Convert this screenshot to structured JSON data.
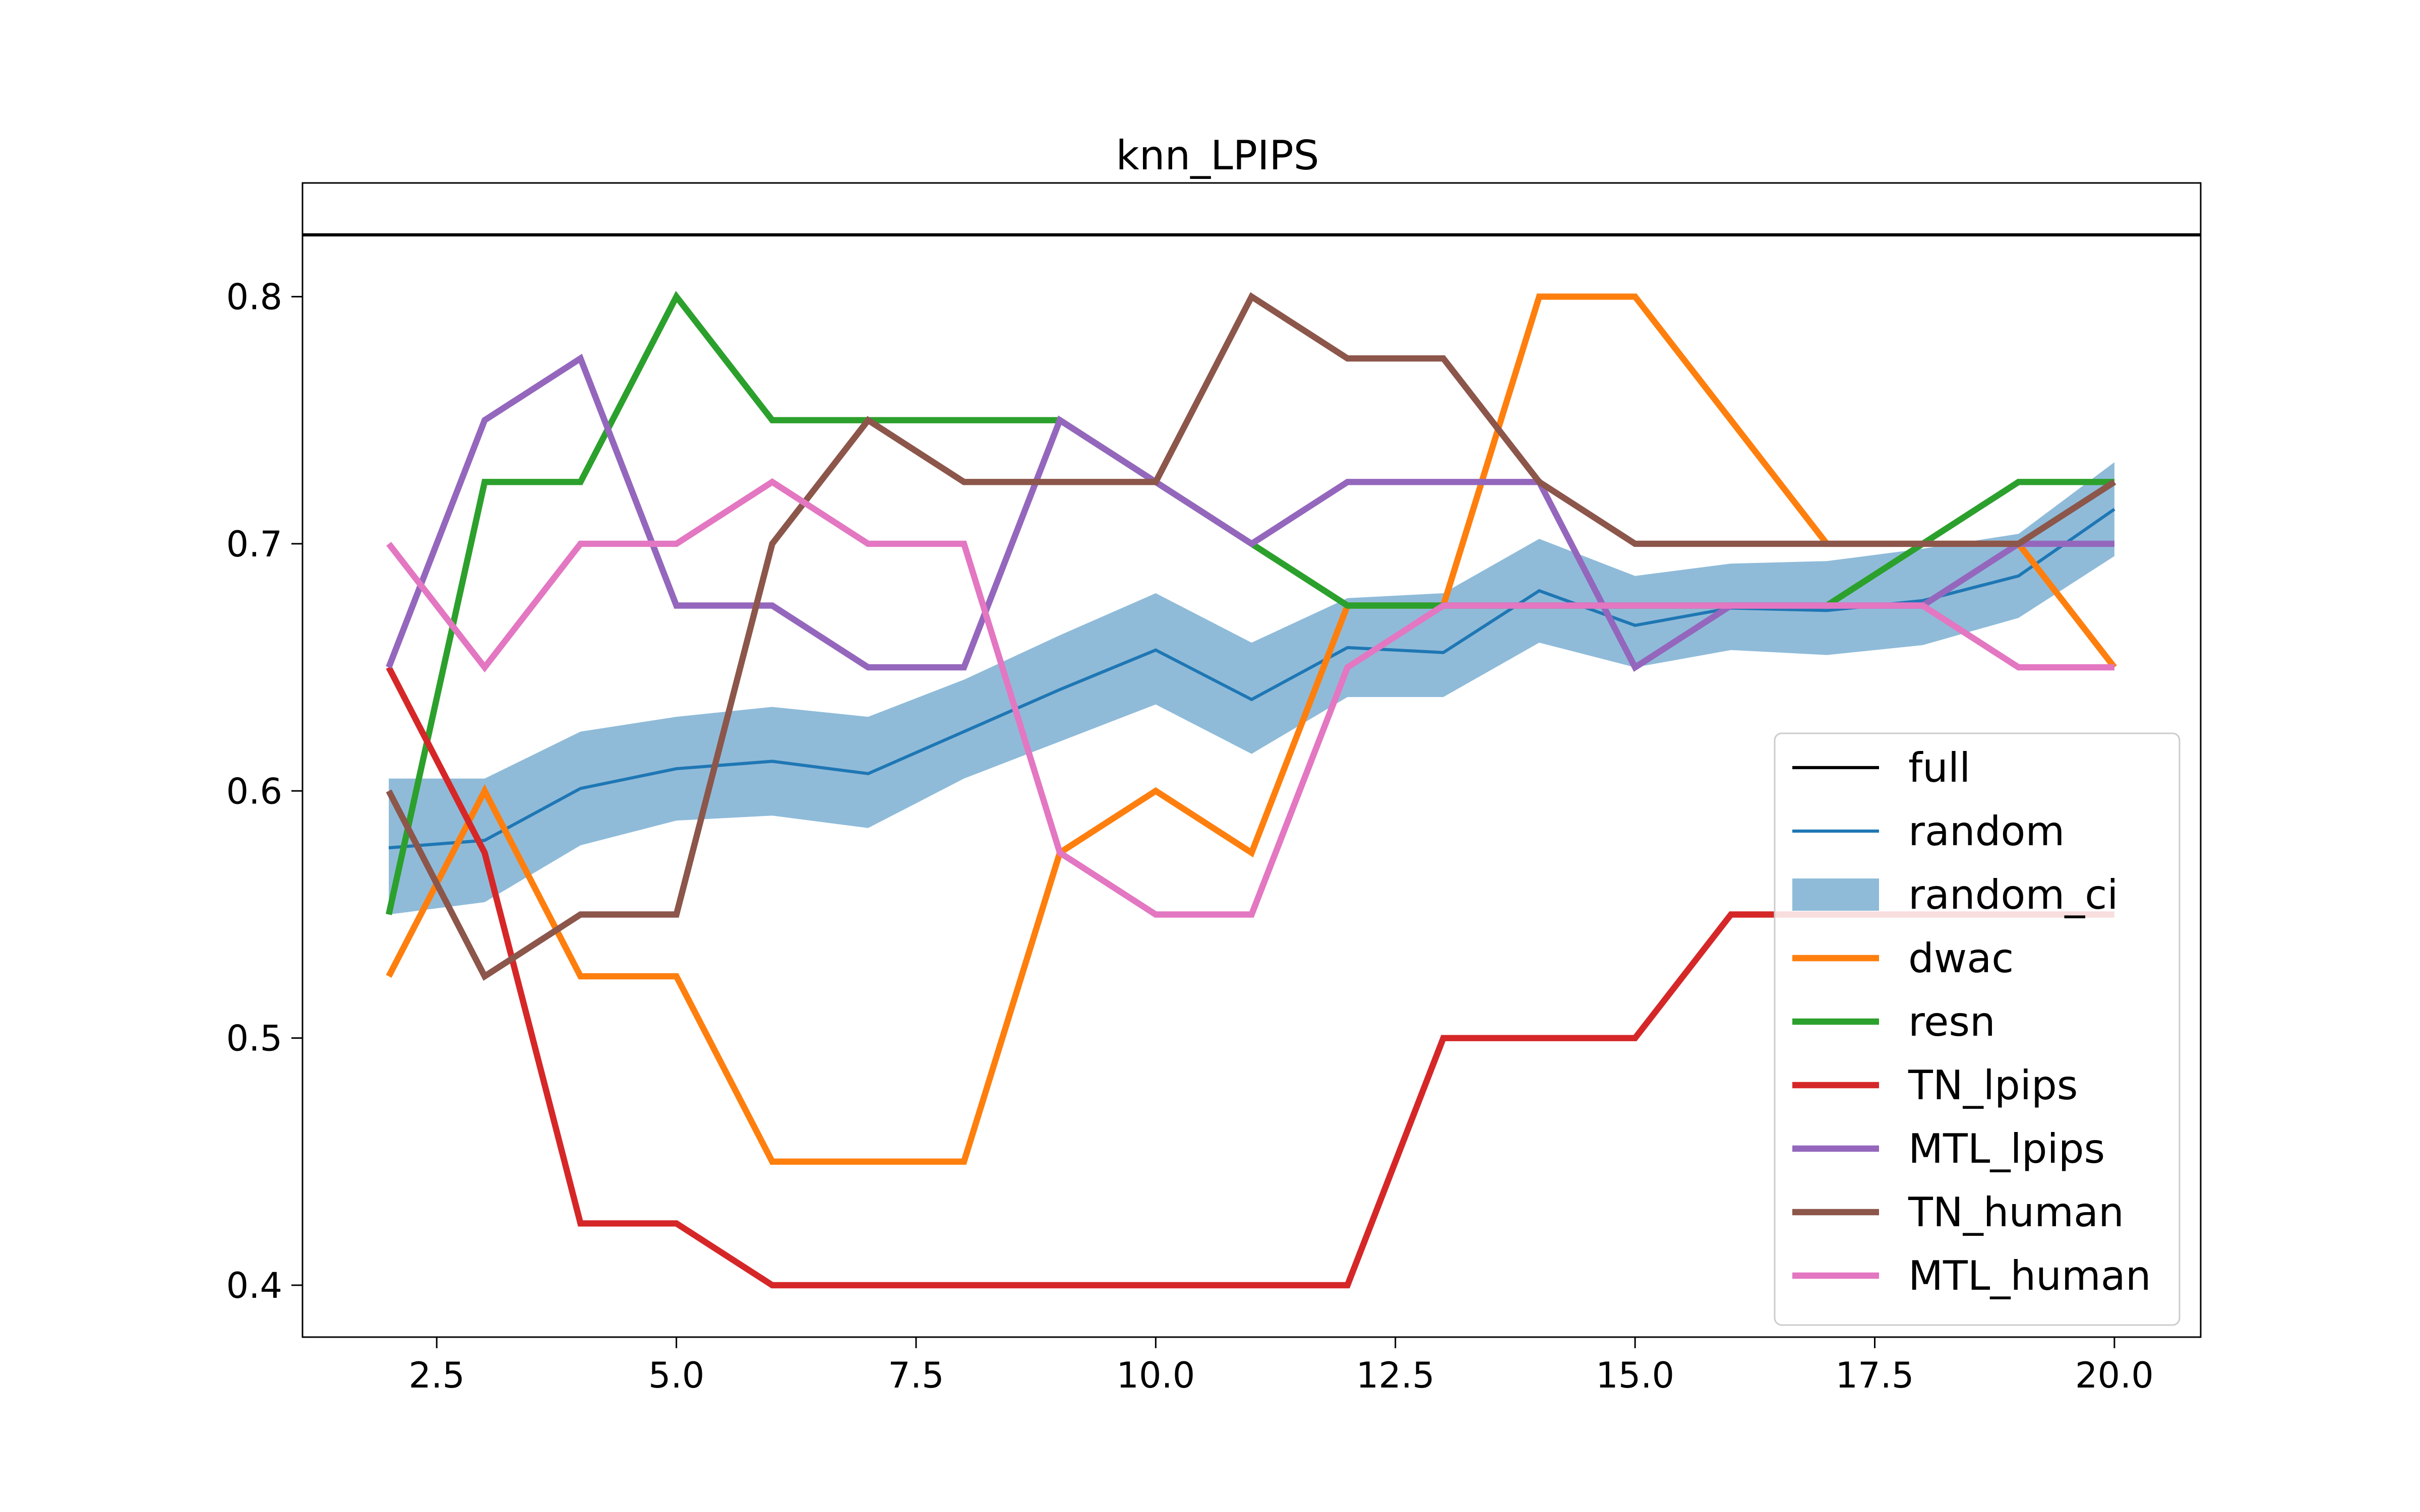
{
  "chart_data": {
    "type": "line",
    "title": "knn_LPIPS",
    "xlabel": "",
    "ylabel": "",
    "xlim": [
      1.1,
      20.9
    ],
    "ylim": [
      0.379,
      0.846
    ],
    "xticks": [
      2.5,
      5.0,
      7.5,
      10.0,
      12.5,
      15.0,
      17.5,
      20.0
    ],
    "xtick_labels": [
      "2.5",
      "5.0",
      "7.5",
      "10.0",
      "12.5",
      "15.0",
      "17.5",
      "20.0"
    ],
    "yticks": [
      0.4,
      0.5,
      0.6,
      0.7,
      0.8
    ],
    "ytick_labels": [
      "0.4",
      "0.5",
      "0.6",
      "0.7",
      "0.8"
    ],
    "grid": false,
    "legend_position": "lower-right",
    "full_value": 0.825,
    "x": [
      2,
      3,
      4,
      5,
      6,
      7,
      8,
      9,
      10,
      11,
      12,
      13,
      14,
      15,
      16,
      17,
      18,
      19,
      20
    ],
    "random_ci": {
      "name": "random_ci",
      "color": "#1f77b4",
      "lower": [
        0.55,
        0.555,
        0.578,
        0.588,
        0.59,
        0.585,
        0.605,
        0.62,
        0.635,
        0.615,
        0.638,
        0.638,
        0.66,
        0.65,
        0.657,
        0.655,
        0.659,
        0.67,
        0.695
      ],
      "upper": [
        0.605,
        0.605,
        0.624,
        0.63,
        0.634,
        0.63,
        0.645,
        0.663,
        0.68,
        0.66,
        0.678,
        0.68,
        0.702,
        0.687,
        0.692,
        0.693,
        0.698,
        0.704,
        0.733
      ]
    },
    "series": [
      {
        "name": "full",
        "color": "#000000",
        "width": 2,
        "constant": 0.825
      },
      {
        "name": "random",
        "color": "#1f77b4",
        "width": 2,
        "values": [
          0.577,
          0.58,
          0.601,
          0.609,
          0.612,
          0.607,
          0.624,
          0.641,
          0.657,
          0.637,
          0.658,
          0.656,
          0.681,
          0.667,
          0.674,
          0.673,
          0.677,
          0.687,
          0.714
        ]
      },
      {
        "name": "random_ci",
        "color": "#1f77b4",
        "band": true
      },
      {
        "name": "dwac",
        "color": "#ff7f0e",
        "width": 4,
        "values": [
          0.525,
          0.6,
          0.525,
          0.525,
          0.45,
          0.45,
          0.45,
          0.575,
          0.6,
          0.575,
          0.675,
          0.675,
          0.8,
          0.8,
          0.75,
          0.7,
          0.7,
          0.7,
          0.65
        ]
      },
      {
        "name": "resn",
        "color": "#2ca02c",
        "width": 4,
        "values": [
          0.55,
          0.725,
          0.725,
          0.8,
          0.75,
          0.75,
          0.75,
          0.75,
          0.725,
          0.7,
          0.675,
          0.675,
          0.675,
          0.675,
          0.675,
          0.675,
          0.7,
          0.725,
          0.725
        ]
      },
      {
        "name": "TN_lpips",
        "color": "#d62728",
        "width": 4,
        "values": [
          0.65,
          0.575,
          0.425,
          0.425,
          0.4,
          0.4,
          0.4,
          0.4,
          0.4,
          0.4,
          0.4,
          0.5,
          0.5,
          0.5,
          0.55,
          0.55,
          0.55,
          0.55,
          0.55
        ]
      },
      {
        "name": "MTL_lpips",
        "color": "#9467bd",
        "width": 4,
        "values": [
          0.65,
          0.75,
          0.775,
          0.675,
          0.675,
          0.65,
          0.65,
          0.75,
          0.725,
          0.7,
          0.725,
          0.725,
          0.725,
          0.65,
          0.675,
          0.675,
          0.675,
          0.7,
          0.7
        ]
      },
      {
        "name": "TN_human",
        "color": "#8c564b",
        "width": 4,
        "values": [
          0.6,
          0.525,
          0.55,
          0.55,
          0.7,
          0.75,
          0.725,
          0.725,
          0.725,
          0.8,
          0.775,
          0.775,
          0.725,
          0.7,
          0.7,
          0.7,
          0.7,
          0.7,
          0.725
        ]
      },
      {
        "name": "MTL_human",
        "color": "#e377c2",
        "width": 4,
        "values": [
          0.7,
          0.65,
          0.7,
          0.7,
          0.725,
          0.7,
          0.7,
          0.575,
          0.55,
          0.55,
          0.65,
          0.675,
          0.675,
          0.675,
          0.675,
          0.675,
          0.675,
          0.65,
          0.65
        ]
      }
    ]
  }
}
